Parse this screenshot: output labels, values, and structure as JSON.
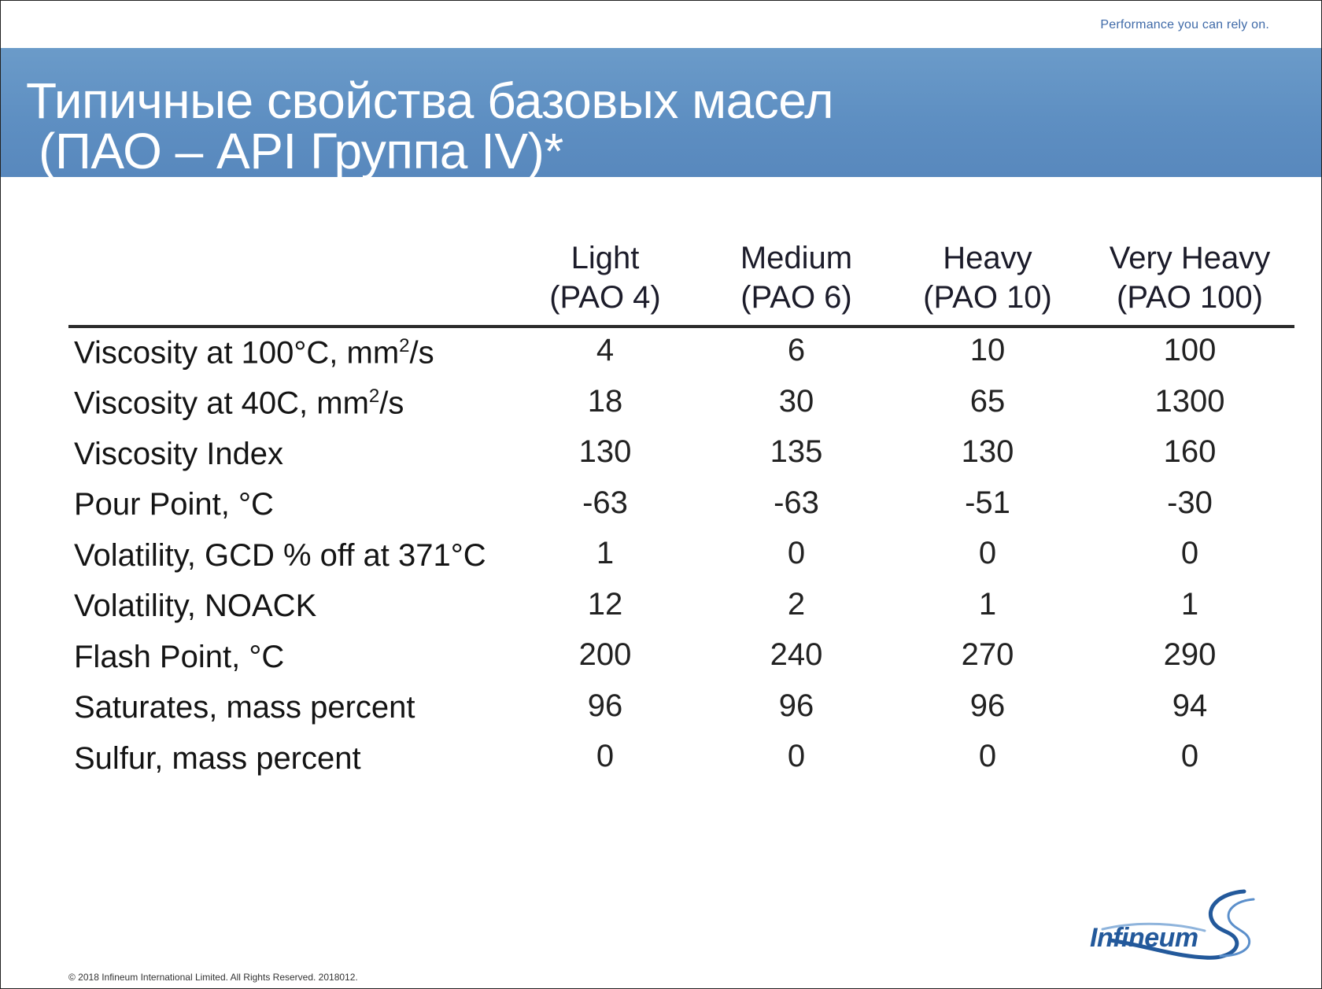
{
  "tagline": "Performance you can rely on.",
  "title": {
    "line1": "Типичные свойства базовых масел",
    "line2": "(ПАО – API Группа IV)*"
  },
  "columns": [
    {
      "name": "Light",
      "grade": "(PAO 4)"
    },
    {
      "name": "Medium",
      "grade": "(PAO 6)"
    },
    {
      "name": "Heavy",
      "grade": "(PAO 10)"
    },
    {
      "name": "Very Heavy",
      "grade": "(PAO 100)"
    }
  ],
  "rows": [
    {
      "label": "Viscosity at 100°C, mm",
      "sup": "2",
      "suffix": "/s",
      "values": [
        "4",
        "6",
        "10",
        "100"
      ]
    },
    {
      "label": "Viscosity at 40C, mm",
      "sup": "2",
      "suffix": "/s",
      "values": [
        "18",
        "30",
        "65",
        "1300"
      ]
    },
    {
      "label": "Viscosity Index",
      "values": [
        "130",
        "135",
        "130",
        "160"
      ]
    },
    {
      "label": "Pour Point, °C",
      "values": [
        "-63",
        "-63",
        "-51",
        "-30"
      ]
    },
    {
      "label": "Volatility, GCD % off at 371°C",
      "values": [
        "1",
        "0",
        "0",
        "0"
      ]
    },
    {
      "label": "Volatility, NOACK",
      "values": [
        "12",
        "2",
        "1",
        "1"
      ]
    },
    {
      "label": "Flash Point, °C",
      "values": [
        "200",
        "240",
        "270",
        "290"
      ]
    },
    {
      "label": "Saturates, mass percent",
      "values": [
        "96",
        "96",
        "96",
        "94"
      ]
    },
    {
      "label": "Sulfur, mass percent",
      "values": [
        "0",
        "0",
        "0",
        "0"
      ]
    }
  ],
  "footer": "© 2018 Infineum International Limited. All Rights Reserved. 2018012.",
  "logo": {
    "text": "Infineum",
    "icon": "infineum-swirl-icon",
    "color": "#23599b"
  },
  "colors": {
    "title_band": "#5e8fc2",
    "tagline": "#3f6aa8"
  }
}
